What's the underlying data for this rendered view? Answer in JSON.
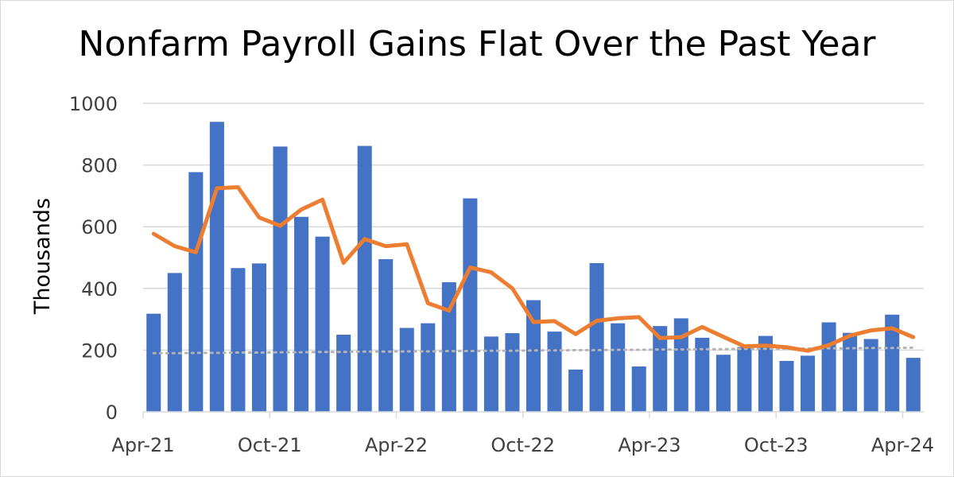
{
  "chart_data": {
    "type": "bar",
    "title": "Nonfarm Payroll Gains Flat Over the Past Year",
    "ylabel": "Thousands",
    "xlabel": "",
    "ylim": [
      0,
      1000
    ],
    "yticks": [
      "0",
      "200",
      "400",
      "600",
      "800",
      "1000"
    ],
    "ytick_values": [
      0,
      200,
      400,
      600,
      800,
      1000
    ],
    "xtick_labels": [
      "Apr-21",
      "Oct-21",
      "Apr-22",
      "Oct-22",
      "Apr-23",
      "Oct-23",
      "Apr-24"
    ],
    "xtick_positions": [
      0,
      6,
      12,
      18,
      24,
      30,
      36
    ],
    "grid": true,
    "legend": "none",
    "categories": [
      "Apr-21",
      "May-21",
      "Jun-21",
      "Jul-21",
      "Aug-21",
      "Sep-21",
      "Oct-21",
      "Nov-21",
      "Dec-21",
      "Jan-22",
      "Feb-22",
      "Mar-22",
      "Apr-22",
      "May-22",
      "Jun-22",
      "Jul-22",
      "Aug-22",
      "Sep-22",
      "Oct-22",
      "Nov-22",
      "Dec-22",
      "Jan-23",
      "Feb-23",
      "Mar-23",
      "Apr-23",
      "May-23",
      "Jun-23",
      "Jul-23",
      "Aug-23",
      "Sep-23",
      "Oct-23",
      "Nov-23",
      "Dec-23",
      "Jan-24",
      "Feb-24",
      "Mar-24",
      "Apr-24"
    ],
    "series": [
      {
        "kind": "bar",
        "color": "#4472c4",
        "values": [
          318,
          450,
          777,
          940,
          466,
          481,
          860,
          632,
          568,
          250,
          862,
          495,
          272,
          287,
          420,
          692,
          244,
          255,
          362,
          260,
          137,
          482,
          287,
          147,
          278,
          303,
          240,
          185,
          210,
          246,
          165,
          182,
          290,
          256,
          236,
          315,
          175
        ]
      },
      {
        "kind": "line",
        "color": "#ed7d31",
        "values": [
          577,
          537,
          517,
          725,
          728,
          630,
          603,
          656,
          688,
          483,
          560,
          537,
          543,
          352,
          328,
          468,
          452,
          400,
          291,
          294,
          252,
          295,
          303,
          307,
          239,
          242,
          275,
          243,
          212,
          215,
          209,
          198,
          216,
          247,
          264,
          271,
          242
        ]
      },
      {
        "kind": "dotted-line",
        "color": "#b4b4b4",
        "values": [
          190,
          190,
          191,
          191,
          192,
          192,
          193,
          193,
          194,
          194,
          195,
          195,
          196,
          196,
          197,
          197,
          198,
          198,
          199,
          199,
          200,
          200,
          201,
          201,
          202,
          202,
          203,
          203,
          204,
          204,
          205,
          205,
          206,
          206,
          207,
          207,
          208
        ]
      }
    ]
  }
}
